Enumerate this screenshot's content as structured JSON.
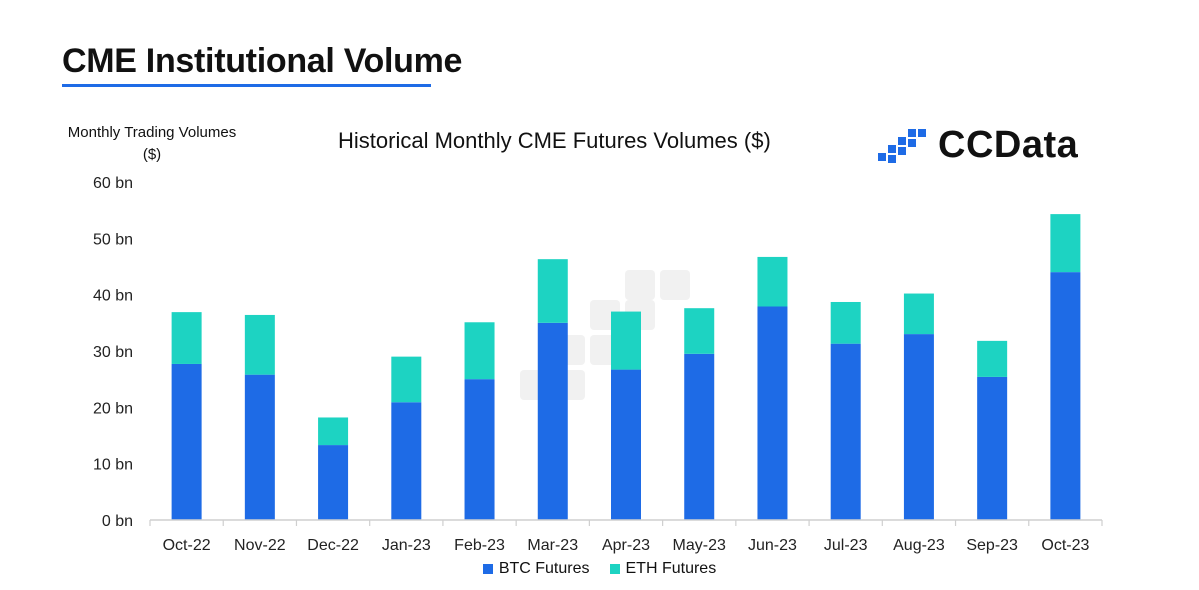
{
  "header": {
    "title": "CME Institutional Volume"
  },
  "brand": {
    "name": "CCData",
    "logo_icon": "ccdata-logo-icon"
  },
  "colors": {
    "accent": "#1e6be6",
    "btc": "#1e6be6",
    "eth": "#1dd3c2",
    "axis": "#cfcfcf",
    "watermark": "#e6e6e6"
  },
  "chart_data": {
    "type": "bar",
    "stacked": true,
    "title": "Historical Monthly CME Futures Volumes ($)",
    "ylabel": "Monthly Trading Volumes ($)",
    "xlabel": "",
    "ylim": [
      0,
      60
    ],
    "yticks": [
      {
        "value": 0,
        "label": "0 bn"
      },
      {
        "value": 10,
        "label": "10 bn"
      },
      {
        "value": 20,
        "label": "20 bn"
      },
      {
        "value": 30,
        "label": "30 bn"
      },
      {
        "value": 40,
        "label": "40 bn"
      },
      {
        "value": 50,
        "label": "50 bn"
      },
      {
        "value": 60,
        "label": "60 bn"
      }
    ],
    "categories": [
      "Oct-22",
      "Nov-22",
      "Dec-22",
      "Jan-23",
      "Feb-23",
      "Mar-23",
      "Apr-23",
      "May-23",
      "Jun-23",
      "Jul-23",
      "Aug-23",
      "Sep-23",
      "Oct-23"
    ],
    "series": [
      {
        "name": "BTC Futures",
        "color": "#1e6be6",
        "values": [
          27.7,
          25.8,
          13.3,
          20.9,
          25.0,
          35.0,
          26.7,
          29.5,
          37.9,
          31.3,
          33.0,
          25.4,
          44.0
        ]
      },
      {
        "name": "ETH Futures",
        "color": "#1dd3c2",
        "values": [
          9.2,
          10.6,
          4.9,
          8.1,
          10.1,
          11.3,
          10.3,
          8.1,
          8.8,
          7.4,
          7.2,
          6.4,
          10.3
        ]
      }
    ],
    "legend_position": "bottom-center",
    "grid": false
  }
}
